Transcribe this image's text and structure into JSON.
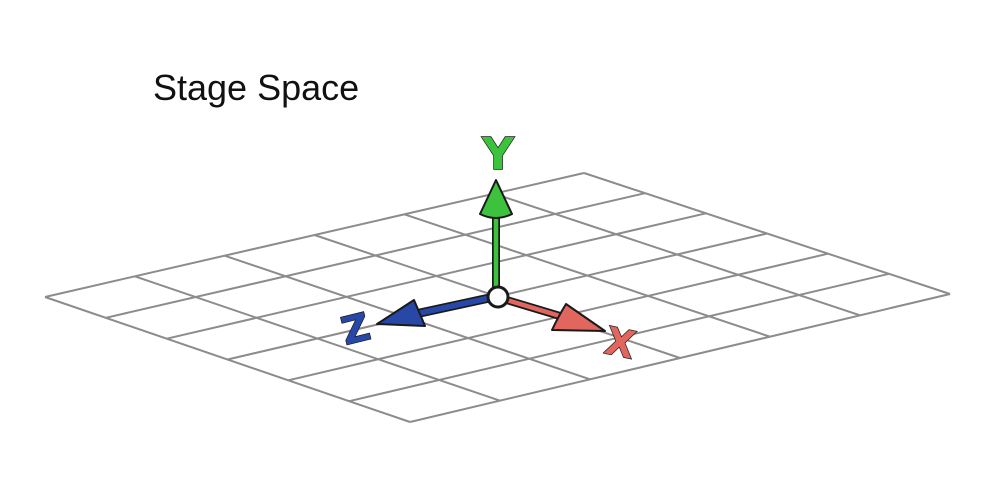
{
  "title": "Stage Space",
  "axes": [
    {
      "id": "y",
      "label": "Y",
      "color": "#3cc23c"
    },
    {
      "id": "z",
      "label": "Z",
      "color": "#2848a8"
    },
    {
      "id": "x",
      "label": "X",
      "color": "#e0665e"
    }
  ],
  "grid": {
    "rows": 6,
    "cols": 6,
    "line_color": "#8c8c8c"
  }
}
